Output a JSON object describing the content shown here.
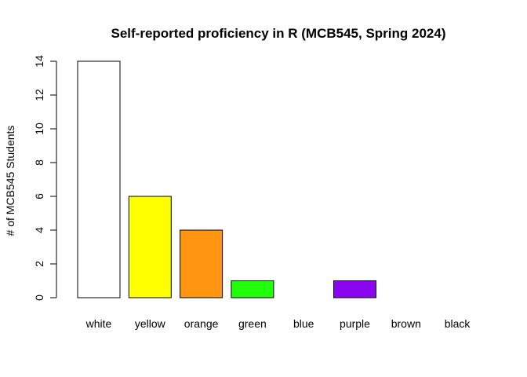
{
  "chart_data": {
    "type": "bar",
    "title": "Self-reported proficiency in R (MCB545, Spring 2024)",
    "xlabel": "",
    "ylabel": "# of MCB545 Students",
    "categories": [
      "white",
      "yellow",
      "orange",
      "green",
      "blue",
      "purple",
      "brown",
      "black"
    ],
    "values": [
      14,
      6,
      4,
      1,
      0,
      1,
      0,
      0
    ],
    "colors": [
      "#ffffff",
      "#ffff00",
      "#ff9510",
      "#22ff0a",
      "#1a3cff",
      "#8b06f0",
      "#8b4513",
      "#000000"
    ],
    "ylim": [
      0,
      14
    ],
    "yticks": [
      "0",
      "2",
      "4",
      "6",
      "8",
      "10",
      "12",
      "14"
    ],
    "grid": false,
    "legend": "none"
  }
}
